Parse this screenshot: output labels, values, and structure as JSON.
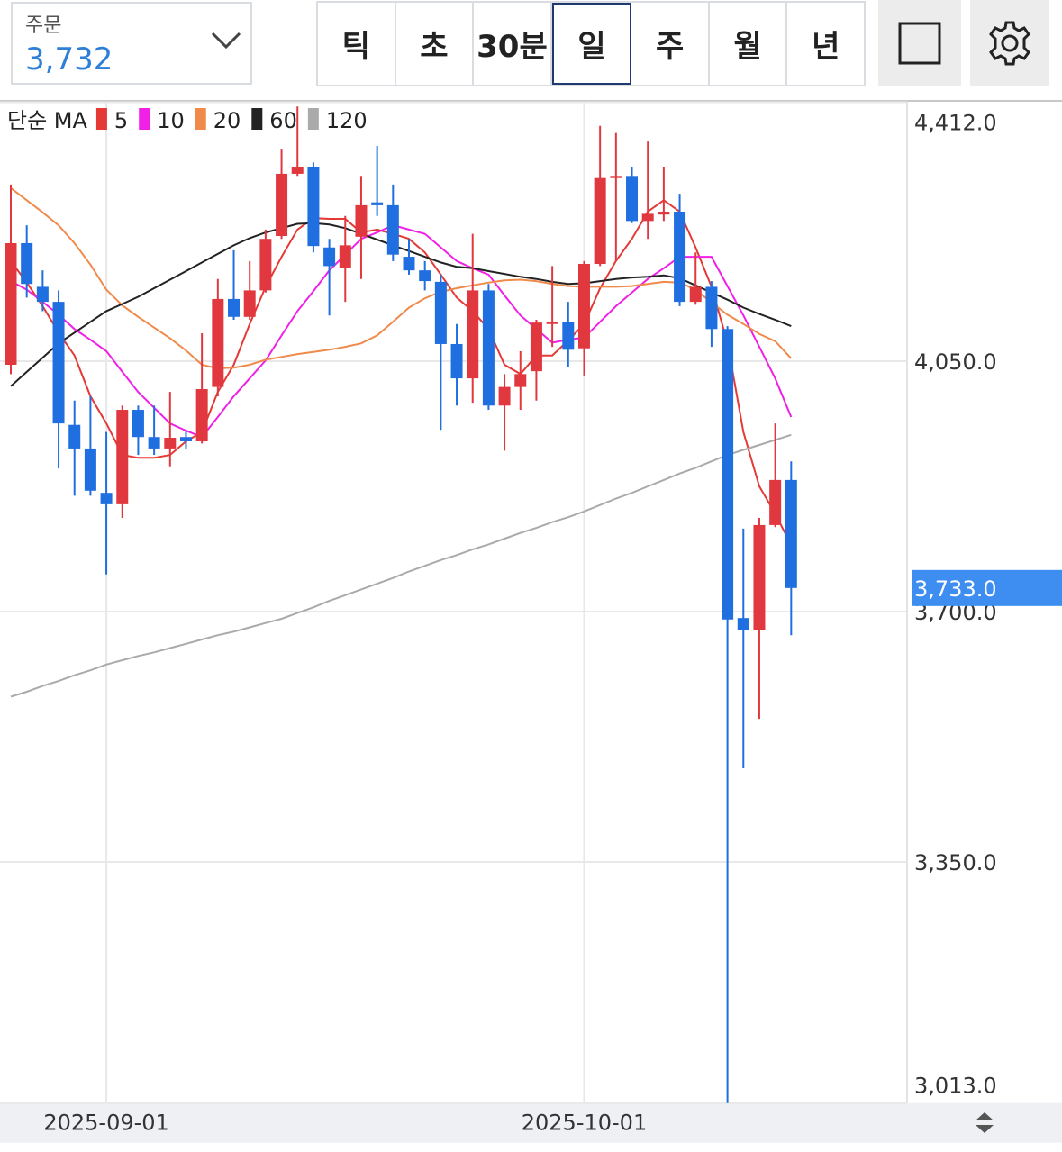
{
  "order": {
    "label": "주문",
    "value": "3,732"
  },
  "tabs": [
    "틱",
    "초",
    "30분",
    "일",
    "주",
    "월",
    "년"
  ],
  "selected_tab": 3,
  "chart_data": {
    "type": "candlestick",
    "legend_title": "단순 MA",
    "categories": [
      null,
      null,
      null,
      null,
      null,
      null,
      "2025-09-01",
      null,
      null,
      null,
      null,
      null,
      null,
      null,
      null,
      null,
      null,
      null,
      null,
      null,
      null,
      null,
      null,
      null,
      null,
      null,
      null,
      null,
      null,
      null,
      null,
      null,
      null,
      null,
      null,
      null,
      "2025-10-01",
      null,
      null,
      null,
      null,
      null,
      null,
      null,
      null,
      null,
      null,
      null,
      null,
      null
    ],
    "open": [
      4045,
      4215,
      4154,
      4133,
      3961,
      3928,
      3866,
      3850,
      3982,
      3944,
      3928,
      3944,
      3938,
      4014,
      4137,
      4112,
      4149,
      4225,
      4312,
      4322,
      4209,
      4181,
      4224,
      4272,
      4268,
      4196,
      4177,
      4161,
      4074,
      4026,
      4149,
      3988,
      4014,
      4036,
      4102,
      4105,
      4068,
      4186,
      4306,
      4309,
      4246,
      4255,
      4259,
      4133,
      4154,
      4095,
      3691,
      3674,
      3821,
      3884
    ],
    "high": [
      4297,
      4240,
      4177,
      4149,
      3995,
      4001,
      3951,
      3988,
      3988,
      3988,
      4007,
      3953,
      4089,
      4165,
      4205,
      4190,
      4234,
      4347,
      4406,
      4328,
      4221,
      4253,
      4309,
      4351,
      4297,
      4221,
      4190,
      4171,
      4102,
      4228,
      4158,
      4032,
      4064,
      4108,
      4183,
      4133,
      4190,
      4379,
      4369,
      4322,
      4357,
      4322,
      4284,
      4202,
      4162,
      4099,
      3816,
      3831,
      3963,
      3910
    ],
    "low": [
      4032,
      4139,
      4120,
      3900,
      3862,
      3862,
      3752,
      3831,
      3919,
      3919,
      3903,
      3928,
      3935,
      4001,
      4108,
      4108,
      4146,
      4221,
      4309,
      4202,
      4114,
      4133,
      4165,
      4253,
      4190,
      4171,
      4149,
      3954,
      3988,
      3992,
      3982,
      3925,
      3982,
      3995,
      4070,
      4042,
      4030,
      4183,
      4190,
      4243,
      4221,
      4246,
      4127,
      4129,
      4070,
      3013,
      3481,
      3550,
      3818,
      3667
    ],
    "close": [
      4215,
      4158,
      4133,
      3963,
      3928,
      3869,
      3850,
      3982,
      3944,
      3928,
      3943,
      3938,
      4011,
      4137,
      4112,
      4149,
      4221,
      4312,
      4322,
      4211,
      4183,
      4212,
      4268,
      4268,
      4199,
      4177,
      4162,
      4074,
      4026,
      4149,
      3988,
      4014,
      4032,
      4104,
      4105,
      4066,
      4186,
      4306,
      4309,
      4246,
      4256,
      4259,
      4133,
      4154,
      4095,
      3689,
      3674,
      3821,
      3884,
      3733
    ],
    "up_color": "#e0383e",
    "down_color": "#1f6fe0",
    "series": [
      {
        "name": "5",
        "color": "#e53935",
        "values": [
          4190,
          4160,
          4127,
          4090,
          4058,
          4001,
          3963,
          3919,
          3915,
          3915,
          3919,
          3938,
          3951,
          4007,
          4045,
          4102,
          4154,
          4196,
          4234,
          4250,
          4249,
          4249,
          4230,
          4234,
          4228,
          4221,
          4202,
          4171,
          4139,
          4120,
          4095,
          4045,
          4032,
          4058,
          4058,
          4079,
          4102,
          4152,
          4190,
          4221,
          4259,
          4275,
          4259,
          4209,
          4154,
          4076,
          3951,
          3875,
          3837,
          3793
        ]
      },
      {
        "name": "10",
        "color": "#f020e6",
        "values": [
          4162,
          4150,
          4133,
          4115,
          4095,
          4080,
          4064,
          4035,
          4007,
          3985,
          3963,
          3953,
          3944,
          3972,
          4001,
          4026,
          4051,
          4086,
          4120,
          4148,
          4177,
          4199,
          4221,
          4230,
          4240,
          4234,
          4228,
          4209,
          4190,
          4180,
          4171,
          4142,
          4114,
          4095,
          4076,
          4080,
          4083,
          4105,
          4127,
          4146,
          4165,
          4180,
          4196,
          4196,
          4196,
          4155,
          4114,
          4070,
          4026,
          3972
        ]
      },
      {
        "name": "20",
        "color": "#f08a4b",
        "values": [
          4292,
          4275,
          4258,
          4240,
          4215,
          4185,
          4150,
          4128,
          4112,
          4097,
          4082,
          4065,
          4045,
          4040,
          4041,
          4045,
          4052,
          4056,
          4060,
          4063,
          4066,
          4070,
          4075,
          4086,
          4105,
          4125,
          4138,
          4147,
          4152,
          4156,
          4160,
          4163,
          4164,
          4162,
          4158,
          4155,
          4154,
          4154,
          4154,
          4155,
          4158,
          4161,
          4160,
          4150,
          4132,
          4115,
          4102,
          4088,
          4078,
          4054
        ]
      },
      {
        "name": "60",
        "color": "#222222",
        "values": [
          4015,
          4035,
          4055,
          4075,
          4090,
          4105,
          4120,
          4130,
          4140,
          4152,
          4164,
          4176,
          4188,
          4200,
          4212,
          4222,
          4230,
          4236,
          4242,
          4243,
          4241,
          4236,
          4228,
          4220,
          4212,
          4204,
          4196,
          4188,
          4182,
          4180,
          4176,
          4172,
          4168,
          4165,
          4161,
          4158,
          4159,
          4162,
          4165,
          4167,
          4168,
          4170,
          4166,
          4156,
          4146,
          4136,
          4125,
          4116,
          4108,
          4099
        ]
      },
      {
        "name": "120",
        "color": "#aaaaaa",
        "values": [
          3581,
          3588,
          3596,
          3603,
          3611,
          3618,
          3626,
          3632,
          3638,
          3643,
          3649,
          3655,
          3661,
          3667,
          3672,
          3678,
          3684,
          3690,
          3698,
          3706,
          3715,
          3723,
          3731,
          3739,
          3747,
          3756,
          3764,
          3772,
          3779,
          3787,
          3794,
          3802,
          3810,
          3817,
          3825,
          3832,
          3840,
          3849,
          3858,
          3866,
          3875,
          3884,
          3893,
          3901,
          3910,
          3919,
          3926,
          3933,
          3940,
          3947
        ]
      }
    ],
    "ylim": [
      3013,
      4412
    ],
    "yticks": [
      {
        "value": 4412,
        "label": "4,412.0"
      },
      {
        "value": 4050,
        "label": "4,050.0"
      },
      {
        "value": 3700,
        "label": "3,700.0"
      },
      {
        "value": 3350,
        "label": "3,350.0"
      },
      {
        "value": 3013,
        "label": "3,013.0"
      }
    ],
    "grid": true,
    "current_price": {
      "value": 3733,
      "label": "3,733.0"
    },
    "current_price_color": "#3d8ef0"
  }
}
